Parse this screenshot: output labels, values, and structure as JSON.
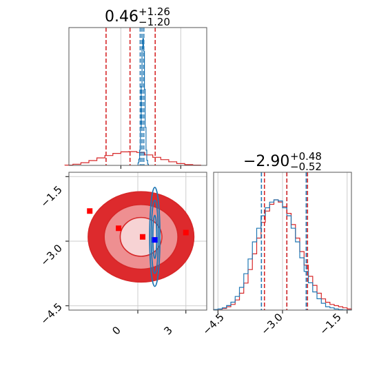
{
  "chart_data": [
    {
      "type": "histogram",
      "panel": "marginal-x",
      "title": {
        "median": "0.46",
        "upper": "+1.26",
        "lower": "−1.20"
      },
      "xlim": [
        -2.6,
        4.3
      ],
      "grid": true,
      "series": [
        {
          "color": "#1f77b4",
          "bins_x": [
            0.88,
            0.92,
            0.96,
            1.0,
            1.04,
            1.08,
            1.12,
            1.16,
            1.2,
            1.24,
            1.28,
            1.32,
            1.36
          ],
          "values": [
            0.02,
            0.05,
            0.12,
            0.3,
            0.62,
            0.92,
            1.0,
            0.9,
            0.6,
            0.3,
            0.12,
            0.04,
            0.01
          ],
          "quantiles_x": [
            0.97,
            1.06,
            1.15
          ]
        },
        {
          "color": "#d62728",
          "bins_x": [
            -2.6,
            -2.2,
            -1.8,
            -1.4,
            -1.0,
            -0.6,
            -0.2,
            0.2,
            0.6,
            1.0,
            1.4,
            1.8,
            2.2,
            2.6,
            3.0,
            3.4,
            3.8
          ],
          "values": [
            0.002,
            0.008,
            0.018,
            0.032,
            0.05,
            0.066,
            0.08,
            0.09,
            0.092,
            0.086,
            0.07,
            0.054,
            0.038,
            0.024,
            0.012,
            0.005,
            0.002
          ],
          "quantiles_x": [
            -0.74,
            0.46,
            1.72
          ]
        }
      ]
    },
    {
      "type": "histogram",
      "panel": "marginal-y",
      "title": {
        "median": "−2.90",
        "upper": "+0.48",
        "lower": "−0.52"
      },
      "xlim": [
        -4.6,
        -1.4
      ],
      "xticks": [
        "−4.5",
        "−3.0",
        "−1.5"
      ],
      "grid": true,
      "series": [
        {
          "color": "#1f77b4",
          "bins_x": [
            -4.55,
            -4.45,
            -4.35,
            -4.25,
            -4.15,
            -4.05,
            -3.95,
            -3.85,
            -3.75,
            -3.65,
            -3.55,
            -3.45,
            -3.35,
            -3.25,
            -3.15,
            -3.05,
            -2.95,
            -2.85,
            -2.75,
            -2.65,
            -2.55,
            -2.45,
            -2.35,
            -2.25,
            -2.15,
            -2.05,
            -1.95,
            -1.85,
            -1.75,
            -1.65,
            -1.55,
            -1.45
          ],
          "values": [
            0.005,
            0.01,
            0.02,
            0.04,
            0.07,
            0.12,
            0.2,
            0.32,
            0.45,
            0.6,
            0.72,
            0.83,
            0.9,
            0.95,
            0.97,
            0.96,
            0.9,
            0.83,
            0.72,
            0.6,
            0.46,
            0.34,
            0.24,
            0.16,
            0.1,
            0.06,
            0.03,
            0.02,
            0.01,
            0.005,
            0.002,
            0.001
          ],
          "quantiles_x": [
            -3.49,
            -2.9,
            -2.45
          ]
        },
        {
          "color": "#d62728",
          "bins_x": [
            -4.55,
            -4.45,
            -4.35,
            -4.25,
            -4.15,
            -4.05,
            -3.95,
            -3.85,
            -3.75,
            -3.65,
            -3.55,
            -3.45,
            -3.35,
            -3.25,
            -3.15,
            -3.05,
            -2.95,
            -2.85,
            -2.75,
            -2.65,
            -2.55,
            -2.45,
            -2.35,
            -2.25,
            -2.15,
            -2.05,
            -1.95,
            -1.85,
            -1.75,
            -1.65,
            -1.55,
            -1.45
          ],
          "values": [
            0.003,
            0.008,
            0.015,
            0.03,
            0.05,
            0.09,
            0.15,
            0.24,
            0.36,
            0.5,
            0.64,
            0.78,
            0.88,
            0.94,
            0.98,
            0.96,
            0.92,
            0.86,
            0.76,
            0.64,
            0.52,
            0.4,
            0.3,
            0.22,
            0.15,
            0.1,
            0.07,
            0.05,
            0.04,
            0.03,
            0.02,
            0.01
          ],
          "quantiles_x": [
            -3.42,
            -2.9,
            -2.42
          ]
        }
      ]
    },
    {
      "type": "contour",
      "panel": "joint",
      "xlim": [
        -4.3,
        4.3
      ],
      "ylim": [
        -4.6,
        -1.4
      ],
      "xticks": [
        "0",
        "3"
      ],
      "yticks": [
        "−1.5",
        "−3.0",
        "−4.5"
      ],
      "grid": true,
      "series": [
        {
          "color": "#d62728",
          "center": [
            0.2,
            -2.9
          ],
          "levels_sd": [
            [
              1.3,
              0.45
            ],
            [
              2.3,
              0.75
            ],
            [
              3.3,
              1.05
            ]
          ],
          "markers": [
            [
              -3.0,
              -2.3
            ],
            [
              -1.2,
              -2.7
            ],
            [
              0.3,
              -2.9
            ],
            [
              3.0,
              -2.8
            ]
          ]
        },
        {
          "color": "#1f77b4",
          "center": [
            1.06,
            -2.9
          ],
          "levels_sd": [
            [
              0.12,
              0.5
            ],
            [
              0.22,
              0.85
            ],
            [
              0.32,
              1.15
            ]
          ],
          "markers": [
            [
              1.06,
              -2.97
            ]
          ]
        }
      ]
    }
  ],
  "colors": {
    "blue": "#1f77b4",
    "red": "#d62728",
    "grid": "#cccccc",
    "frame": "#555555"
  }
}
